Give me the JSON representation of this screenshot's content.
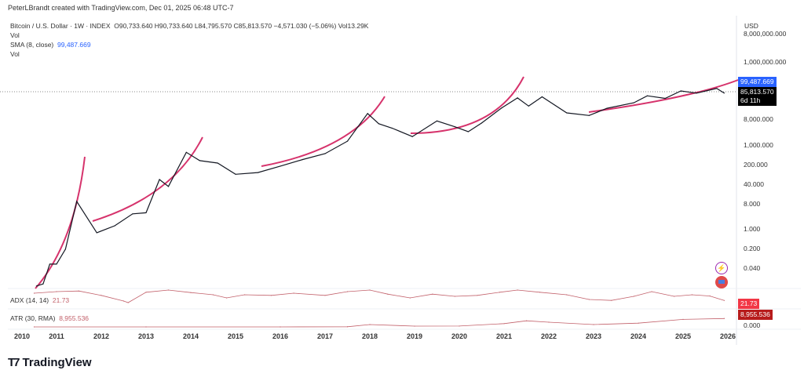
{
  "header": {
    "credit": "PeterLBrandt created with TradingView.com, Dec 01, 2025 06:48 UTC-7"
  },
  "legend": {
    "symbol": "Bitcoin / U.S. Dollar · 1W · INDEX",
    "ohlc": "O90,733.640  H90,733.640  L84,795.570  C85,813.570  −4,571.030 (−5.06%)  Vol13.29K",
    "vol1": "Vol",
    "sma_label": "SMA (8, close)",
    "sma_value": "99,487.669",
    "vol2": "Vol"
  },
  "axis": {
    "currency": "USD",
    "ticks": [
      "8,000,000.000",
      "1,000,000.000",
      "8,000.000",
      "1,000.000",
      "200.000",
      "40.000",
      "8.000",
      "1.000",
      "0.200",
      "0.040",
      "0.000"
    ],
    "sma_tag": "99,487.669",
    "price_tag": "85,813.570",
    "countdown": "6d 11h",
    "adx_tag": "21.73",
    "atr_tag": "8,955.536"
  },
  "indicators": {
    "adx_label": "ADX (14, 14)",
    "adx_value": "21.73",
    "atr_label": "ATR (30, RMA)",
    "atr_value": "8,955.536"
  },
  "colors": {
    "price": "#131722",
    "arc": "#d6336c",
    "sma": "#2962ff",
    "indicator": "#c2606a",
    "sma_tag": "#2962ff",
    "adx_tag": "#f23645",
    "atr_tag": "#b71c1c"
  },
  "icons": [
    "lightning-icon",
    "flag-icon"
  ],
  "brand": "TradingView",
  "chart_data": {
    "type": "line",
    "scale": "log",
    "x_ticks": [
      "2010",
      "2011",
      "2012",
      "2013",
      "2014",
      "2015",
      "2016",
      "2017",
      "2018",
      "2019",
      "2020",
      "2021",
      "2022",
      "2023",
      "2024",
      "2025",
      "2026"
    ],
    "price": {
      "x": [
        2010.55,
        2010.7,
        2010.85,
        2011.0,
        2011.2,
        2011.45,
        2011.9,
        2012.3,
        2012.7,
        2013.0,
        2013.3,
        2013.5,
        2013.9,
        2014.2,
        2014.6,
        2015.0,
        2015.5,
        2016.0,
        2016.5,
        2017.0,
        2017.5,
        2017.95,
        2018.2,
        2018.5,
        2018.95,
        2019.5,
        2019.9,
        2020.2,
        2020.5,
        2020.95,
        2021.3,
        2021.55,
        2021.85,
        2022.4,
        2022.9,
        2023.3,
        2023.9,
        2024.2,
        2024.6,
        2024.95,
        2025.3,
        2025.75,
        2025.92
      ],
      "y": [
        0.06,
        0.07,
        0.3,
        0.3,
        0.9,
        30,
        3,
        5,
        12,
        13,
        150,
        90,
        1100,
        600,
        500,
        220,
        250,
        400,
        650,
        1000,
        2500,
        19000,
        9000,
        6500,
        3500,
        11000,
        7200,
        5000,
        9500,
        29000,
        60000,
        33000,
        65000,
        20000,
        16500,
        28000,
        42000,
        70000,
        58000,
        100000,
        85000,
        120000,
        85813.57
      ]
    },
    "adx": {
      "x": [
        2010.5,
        2011,
        2011.5,
        2012,
        2012.5,
        2012.6,
        2013,
        2013.5,
        2014,
        2014.5,
        2014.8,
        2015.2,
        2015.8,
        2016.3,
        2017,
        2017.5,
        2018,
        2018.4,
        2018.9,
        2019.4,
        2019.9,
        2020.4,
        2020.9,
        2021.3,
        2021.8,
        2022.4,
        2022.9,
        2023.4,
        2023.9,
        2024.3,
        2024.8,
        2025.2,
        2025.6,
        2025.92
      ],
      "y": [
        45,
        50,
        52,
        38,
        20,
        15,
        48,
        55,
        47,
        40,
        30,
        40,
        38,
        45,
        38,
        50,
        55,
        42,
        30,
        42,
        35,
        38,
        48,
        55,
        48,
        40,
        25,
        22,
        35,
        50,
        35,
        40,
        36,
        21.73
      ]
    },
    "atr": {
      "x": [
        2010.5,
        2013,
        2016,
        2017.5,
        2018,
        2019,
        2020,
        2021,
        2021.5,
        2022,
        2023,
        2024,
        2025,
        2025.92
      ],
      "y": [
        0,
        10,
        30,
        200,
        2500,
        800,
        900,
        3500,
        6500,
        5000,
        2500,
        4000,
        8000,
        8955.536
      ]
    }
  }
}
